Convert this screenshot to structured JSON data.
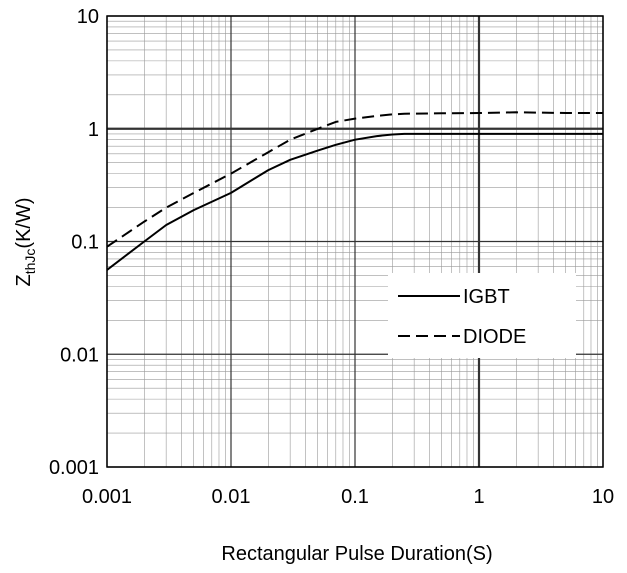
{
  "chart_data": {
    "type": "line",
    "title": "",
    "xlabel": "Rectangular Pulse Duration(S)",
    "ylabel": {
      "main": "Z",
      "sub": "thJc",
      "rest": "(K/W)"
    },
    "xscale": "log",
    "yscale": "log",
    "xlim": [
      0.001,
      10
    ],
    "ylim": [
      0.001,
      10
    ],
    "xticks": [
      "0.001",
      "0.01",
      "0.1",
      "1",
      "10"
    ],
    "yticks": [
      "0.001",
      "0.01",
      "0.1",
      "1",
      "10"
    ],
    "grid": "major and minor",
    "legend_position": "lower-right",
    "series": [
      {
        "name": "IGBT",
        "line_style": "solid",
        "color": "#000000",
        "x": [
          0.001,
          0.002,
          0.003,
          0.005,
          0.01,
          0.02,
          0.03,
          0.05,
          0.07,
          0.1,
          0.15,
          0.2,
          0.25,
          0.5,
          1,
          2,
          5,
          10
        ],
        "y": [
          0.056,
          0.1,
          0.14,
          0.19,
          0.27,
          0.43,
          0.53,
          0.64,
          0.72,
          0.8,
          0.86,
          0.89,
          0.9,
          0.9,
          0.9,
          0.9,
          0.9,
          0.9
        ]
      },
      {
        "name": "DIODE",
        "line_style": "dashed",
        "color": "#000000",
        "x": [
          0.001,
          0.002,
          0.003,
          0.005,
          0.01,
          0.02,
          0.03,
          0.05,
          0.07,
          0.1,
          0.15,
          0.2,
          0.25,
          0.5,
          1,
          2,
          5,
          10
        ],
        "y": [
          0.09,
          0.15,
          0.2,
          0.27,
          0.4,
          0.62,
          0.8,
          1.0,
          1.15,
          1.23,
          1.3,
          1.34,
          1.36,
          1.37,
          1.38,
          1.4,
          1.38,
          1.38
        ]
      }
    ]
  }
}
